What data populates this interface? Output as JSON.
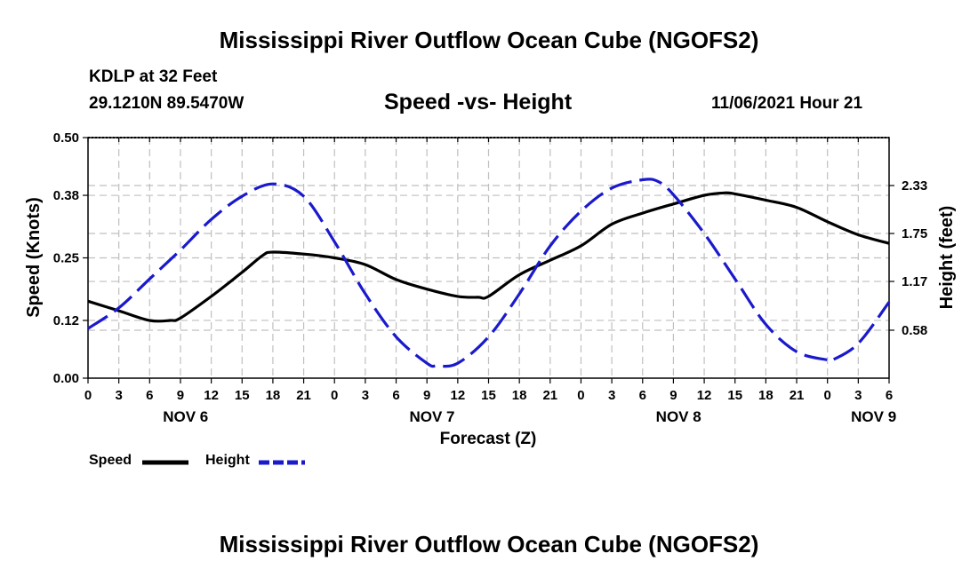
{
  "header": {
    "title": "Mississippi River Outflow Ocean Cube (NGOFS2)",
    "station": "KDLP at 32 Feet",
    "coords": "29.1210N  89.5470W",
    "subtitle": "Speed -vs- Height",
    "datetime": "11/06/2021 Hour 21"
  },
  "footer": {
    "title": "Mississippi River Outflow Ocean Cube (NGOFS2)"
  },
  "legend": {
    "speed_label": "Speed",
    "height_label": "Height"
  },
  "colors": {
    "speed": "#000000",
    "height": "#1a1acc",
    "grid": "#bfbfbf"
  },
  "chart_data": {
    "type": "line",
    "title": "Speed -vs- Height",
    "xlabel": "Forecast (Z)",
    "ylabel": "Speed (Knots)",
    "y2label": "Height (feet)",
    "x_range_hours": [
      0,
      78
    ],
    "x_tick_step_hours": 3,
    "x_tick_labels": [
      "0",
      "3",
      "6",
      "9",
      "12",
      "15",
      "18",
      "21",
      "0",
      "3",
      "6",
      "9",
      "12",
      "15",
      "18",
      "21",
      "0",
      "3",
      "6",
      "9",
      "12",
      "15",
      "18",
      "21",
      "0",
      "3",
      "6"
    ],
    "day_labels": [
      {
        "label": "NOV 6",
        "hour": 9.5
      },
      {
        "label": "NOV 7",
        "hour": 33.5
      },
      {
        "label": "NOV 8",
        "hour": 57.5
      },
      {
        "label": "NOV 9",
        "hour": 76.5
      }
    ],
    "ylim": [
      0.0,
      0.5
    ],
    "yticks": [
      "0.00",
      "0.12",
      "0.25",
      "0.38",
      "0.50"
    ],
    "y2lim": [
      0.0,
      2.91
    ],
    "y2ticks": [
      "0.58",
      "1.17",
      "1.75",
      "2.33"
    ],
    "series": [
      {
        "name": "Speed",
        "axis": "left",
        "style": "solid",
        "x": [
          0,
          3,
          6,
          8,
          9,
          12,
          15,
          17,
          18,
          21,
          24,
          27,
          30,
          33,
          36,
          38,
          39,
          42,
          45,
          48,
          51,
          54,
          57,
          60,
          62,
          63,
          66,
          69,
          72,
          75,
          78
        ],
        "y": [
          0.16,
          0.14,
          0.12,
          0.12,
          0.125,
          0.17,
          0.22,
          0.255,
          0.262,
          0.258,
          0.25,
          0.236,
          0.205,
          0.185,
          0.17,
          0.168,
          0.17,
          0.215,
          0.245,
          0.275,
          0.32,
          0.343,
          0.362,
          0.38,
          0.385,
          0.383,
          0.37,
          0.355,
          0.325,
          0.298,
          0.28
        ]
      },
      {
        "name": "Height",
        "axis": "right",
        "style": "dashed",
        "x": [
          0,
          3,
          6,
          9,
          12,
          15,
          18,
          21,
          24,
          27,
          30,
          33,
          34,
          36,
          39,
          42,
          45,
          48,
          51,
          54,
          55.5,
          57,
          60,
          63,
          66,
          69,
          72,
          72.5,
          75,
          78
        ],
        "y": [
          0.6,
          0.85,
          1.2,
          1.55,
          1.92,
          2.2,
          2.35,
          2.2,
          1.65,
          1.02,
          0.5,
          0.18,
          0.15,
          0.18,
          0.5,
          1.02,
          1.6,
          2.02,
          2.3,
          2.4,
          2.38,
          2.22,
          1.75,
          1.2,
          0.65,
          0.32,
          0.22,
          0.22,
          0.42,
          0.92
        ]
      }
    ]
  }
}
